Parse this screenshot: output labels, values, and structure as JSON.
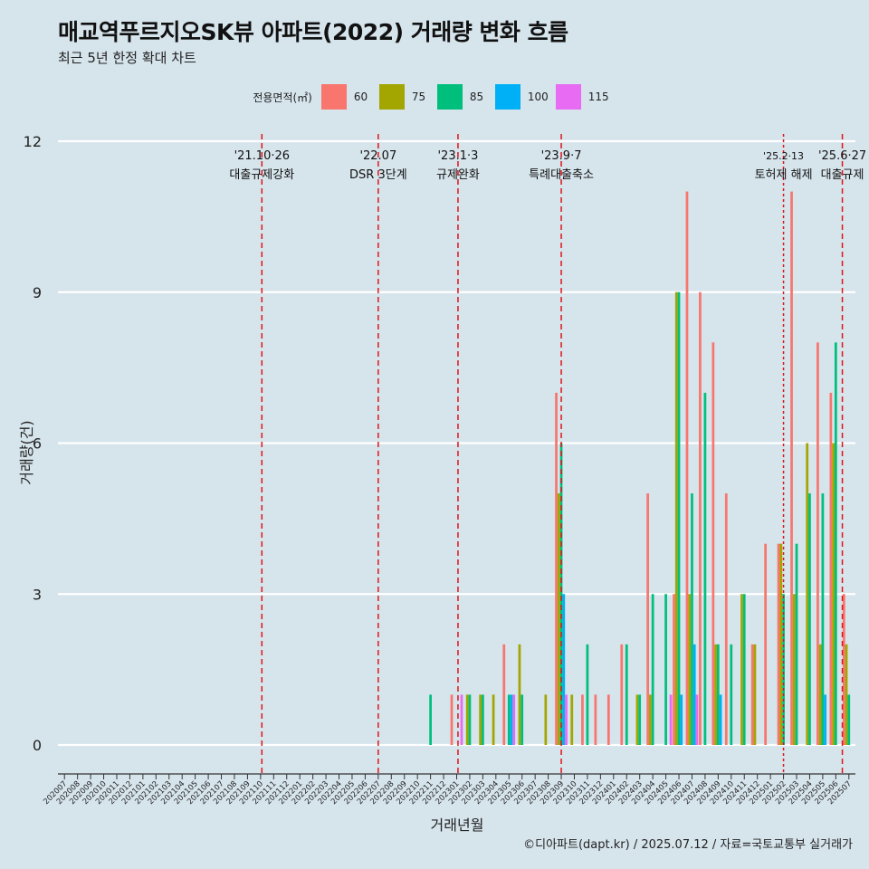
{
  "header": {
    "title": "매교역푸르지오SK뷰 아파트(2022) 거래량 변화 흐름",
    "subtitle": "최근 5년 한정 확대 차트"
  },
  "caption": "©디아파트(dapt.kr) / 2025.07.12 / 자료=국토교통부 실거래가",
  "chart_data": {
    "type": "bar",
    "xlabel": "거래년월",
    "ylabel": "거래량(건)",
    "ylim": [
      0,
      12
    ],
    "yticks": [
      0,
      3,
      6,
      9,
      12
    ],
    "grid": "horizontal",
    "legend": {
      "title": "전용면적(㎡)",
      "placement": "top",
      "items": [
        {
          "name": "60",
          "color": "#f8766d"
        },
        {
          "name": "75",
          "color": "#a3a500"
        },
        {
          "name": "85",
          "color": "#00bf7d"
        },
        {
          "name": "100",
          "color": "#00b0f6"
        },
        {
          "name": "115",
          "color": "#e76bf3"
        }
      ]
    },
    "categories": [
      "202007",
      "202008",
      "202009",
      "202010",
      "202011",
      "202012",
      "202101",
      "202102",
      "202103",
      "202104",
      "202105",
      "202106",
      "202107",
      "202108",
      "202109",
      "202110",
      "202111",
      "202112",
      "202201",
      "202202",
      "202203",
      "202204",
      "202205",
      "202206",
      "202207",
      "202208",
      "202209",
      "202210",
      "202211",
      "202212",
      "202301",
      "202302",
      "202303",
      "202304",
      "202305",
      "202306",
      "202307",
      "202308",
      "202309",
      "202310",
      "202311",
      "202312",
      "202401",
      "202402",
      "202403",
      "202404",
      "202405",
      "202406",
      "202407",
      "202408",
      "202409",
      "202410",
      "202411",
      "202412",
      "202501",
      "202502",
      "202503",
      "202504",
      "202505",
      "202506",
      "202507"
    ],
    "series": [
      {
        "name": "60",
        "values": [
          0,
          0,
          0,
          0,
          0,
          0,
          0,
          0,
          0,
          0,
          0,
          0,
          0,
          0,
          0,
          0,
          0,
          0,
          0,
          0,
          0,
          0,
          0,
          0,
          0,
          0,
          0,
          0,
          0,
          0,
          1,
          0,
          0,
          0,
          2,
          0,
          0,
          0,
          7,
          0,
          1,
          1,
          1,
          2,
          0,
          5,
          0,
          3,
          11,
          9,
          8,
          5,
          0,
          2,
          4,
          4,
          11,
          0,
          8,
          7,
          3
        ]
      },
      {
        "name": "75",
        "values": [
          0,
          0,
          0,
          0,
          0,
          0,
          0,
          0,
          0,
          0,
          0,
          0,
          0,
          0,
          0,
          0,
          0,
          0,
          0,
          0,
          0,
          0,
          0,
          0,
          0,
          0,
          0,
          0,
          0,
          0,
          0,
          1,
          1,
          1,
          0,
          2,
          0,
          1,
          5,
          1,
          0,
          0,
          0,
          0,
          1,
          1,
          0,
          9,
          3,
          0,
          2,
          0,
          3,
          2,
          0,
          4,
          3,
          6,
          2,
          6,
          2
        ]
      },
      {
        "name": "85",
        "values": [
          0,
          0,
          0,
          0,
          0,
          0,
          0,
          0,
          0,
          0,
          0,
          0,
          0,
          0,
          0,
          0,
          0,
          0,
          0,
          0,
          0,
          0,
          0,
          0,
          0,
          0,
          0,
          0,
          1,
          0,
          0,
          1,
          1,
          0,
          1,
          1,
          0,
          0,
          6,
          0,
          2,
          0,
          0,
          2,
          1,
          3,
          3,
          9,
          5,
          7,
          2,
          2,
          3,
          0,
          0,
          3,
          4,
          5,
          5,
          8,
          1
        ]
      },
      {
        "name": "100",
        "values": [
          0,
          0,
          0,
          0,
          0,
          0,
          0,
          0,
          0,
          0,
          0,
          0,
          0,
          0,
          0,
          0,
          0,
          0,
          0,
          0,
          0,
          0,
          0,
          0,
          0,
          0,
          0,
          0,
          0,
          0,
          0,
          0,
          0,
          0,
          1,
          0,
          0,
          0,
          3,
          0,
          0,
          0,
          0,
          0,
          0,
          0,
          0,
          1,
          2,
          0,
          1,
          0,
          0,
          0,
          0,
          0,
          0,
          0,
          1,
          0,
          0
        ]
      },
      {
        "name": "115",
        "values": [
          0,
          0,
          0,
          0,
          0,
          0,
          0,
          0,
          0,
          0,
          0,
          0,
          0,
          0,
          0,
          0,
          0,
          0,
          0,
          0,
          0,
          0,
          0,
          0,
          0,
          0,
          0,
          0,
          0,
          0,
          1,
          0,
          0,
          0,
          1,
          0,
          0,
          0,
          1,
          0,
          0,
          0,
          0,
          0,
          0,
          0,
          1,
          0,
          1,
          0,
          0,
          0,
          0,
          0,
          0,
          0,
          0,
          0,
          0,
          0,
          0
        ]
      }
    ],
    "annotations": [
      {
        "x": "202110",
        "offset": 0.1,
        "date": "'21.10·26",
        "label": "대출규제강화",
        "style": "dashed"
      },
      {
        "x": "202207",
        "offset": 0.0,
        "date": "'22.07",
        "label": "DSR 3단계",
        "style": "dashed"
      },
      {
        "x": "202301",
        "offset": 0.1,
        "date": "'23.1·3",
        "label": "규제완화",
        "style": "dashed"
      },
      {
        "x": "202309",
        "offset": 0.0,
        "date": "'23.9·7",
        "label": "특례대출축소",
        "style": "dashed"
      },
      {
        "x": "202502",
        "offset": 0.0,
        "date": "'25.2·13",
        "label": "토허제 해제",
        "style": "dotted"
      },
      {
        "x": "202506",
        "offset": 0.5,
        "date": "'25.6·27",
        "label": "대출규제",
        "style": "dashed"
      }
    ]
  }
}
